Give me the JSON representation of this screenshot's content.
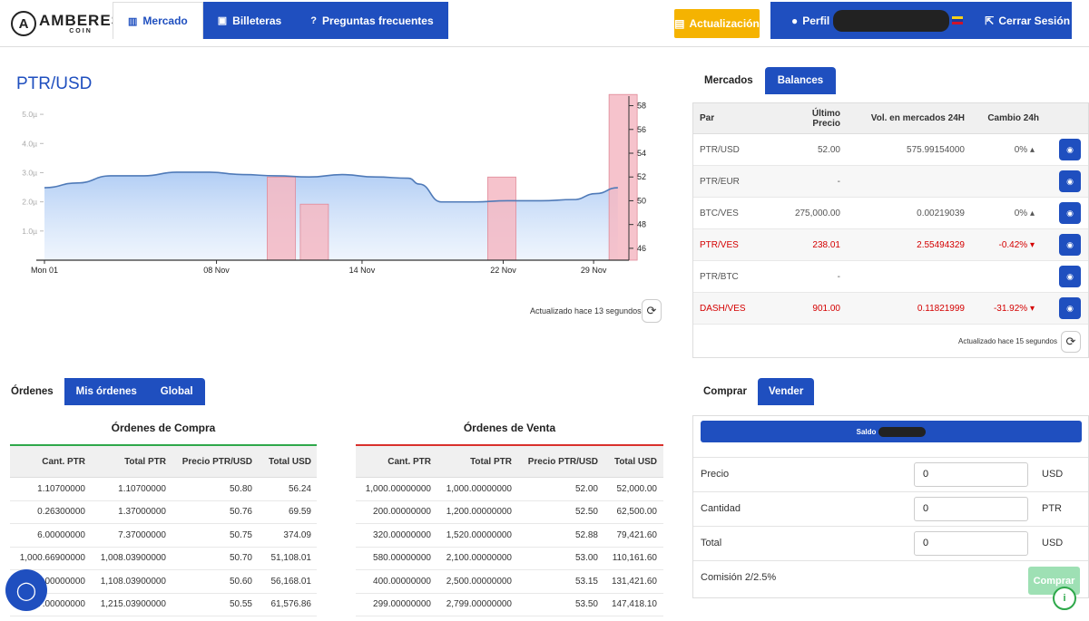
{
  "brand": {
    "name": "AMBERES",
    "sub": "COIN"
  },
  "nav": {
    "tabs": [
      {
        "label": "Mercado",
        "icon": "bar-chart-icon"
      },
      {
        "label": "Billeteras",
        "icon": "wallet-icon"
      },
      {
        "label": "Preguntas frecuentes",
        "icon": "question-icon"
      }
    ],
    "update_label": "Actualización",
    "profile_label": "Perfil",
    "logout_label": "Cerrar Sesión"
  },
  "pair": {
    "title": "PTR/USD",
    "updated": "Actualizado hace 13 segundos"
  },
  "chart_data": {
    "type": "area",
    "x_ticks": [
      "Mon 01",
      "08 Nov",
      "14 Nov",
      "22 Nov",
      "29 Nov"
    ],
    "left_axis": {
      "ticks": [
        "1.0µ",
        "2.0µ",
        "3.0µ",
        "4.0µ",
        "5.0µ"
      ],
      "range": [
        0,
        5.5
      ]
    },
    "right_axis": {
      "ticks": [
        "46",
        "48",
        "50",
        "52",
        "54",
        "56",
        "58"
      ],
      "range": [
        45,
        58.5
      ]
    },
    "price_series": [
      [
        0,
        51.1
      ],
      [
        1.5,
        51.5
      ],
      [
        3,
        52.1
      ],
      [
        4.5,
        52.1
      ],
      [
        6,
        52.4
      ],
      [
        7.5,
        52.4
      ],
      [
        9,
        52.2
      ],
      [
        10.5,
        52.1
      ],
      [
        12,
        52.0
      ],
      [
        13.5,
        52.2
      ],
      [
        15,
        52.0
      ],
      [
        16.5,
        51.9
      ],
      [
        17,
        51.4
      ],
      [
        18,
        49.9
      ],
      [
        19.5,
        49.9
      ],
      [
        21,
        50.0
      ],
      [
        22.5,
        50.0
      ],
      [
        24,
        50.1
      ],
      [
        25,
        50.6
      ],
      [
        26,
        51.1
      ]
    ],
    "volume_bars": [
      {
        "x": 10.1,
        "value": 2.85
      },
      {
        "x": 11.6,
        "value": 1.92
      },
      {
        "x": 20.1,
        "value": 2.85
      },
      {
        "x": 25.6,
        "value": 5.68
      }
    ],
    "x_domain": [
      0,
      26.5
    ]
  },
  "markets": {
    "tabs": [
      "Mercados",
      "Balances"
    ],
    "headers": [
      "Par",
      "Último Precio",
      "Vol. en mercados 24H",
      "Cambio 24h"
    ],
    "rows": [
      {
        "par": "PTR/USD",
        "last": "52.00",
        "vol": "575.99154000",
        "chg": "0%",
        "dir": "up",
        "neg": false
      },
      {
        "par": "PTR/EUR",
        "last": "-",
        "vol": "",
        "chg": "",
        "dir": "",
        "neg": false
      },
      {
        "par": "BTC/VES",
        "last": "275,000.00",
        "vol": "0.00219039",
        "chg": "0%",
        "dir": "up",
        "neg": false
      },
      {
        "par": "PTR/VES",
        "last": "238.01",
        "vol": "2.55494329",
        "chg": "-0.42%",
        "dir": "down",
        "neg": true
      },
      {
        "par": "PTR/BTC",
        "last": "-",
        "vol": "",
        "chg": "",
        "dir": "",
        "neg": false
      },
      {
        "par": "DASH/VES",
        "last": "901.00",
        "vol": "0.11821999",
        "chg": "-31.92%",
        "dir": "down",
        "neg": true
      }
    ],
    "updated": "Actualizado hace 15 segundos"
  },
  "orders": {
    "tabs": [
      "Órdenes",
      "Mis órdenes",
      "Global"
    ],
    "buy_title": "Órdenes de Compra",
    "sell_title": "Órdenes de Venta",
    "headers": [
      "Cant. PTR",
      "Total PTR",
      "Precio PTR/USD",
      "Total USD"
    ],
    "buy_rows": [
      [
        "1.10700000",
        "1.10700000",
        "50.80",
        "56.24"
      ],
      [
        "0.26300000",
        "1.37000000",
        "50.76",
        "69.59"
      ],
      [
        "6.00000000",
        "7.37000000",
        "50.75",
        "374.09"
      ],
      [
        "1,000.66900000",
        "1,008.03900000",
        "50.70",
        "51,108.01"
      ],
      [
        "100.00000000",
        "1,108.03900000",
        "50.60",
        "56,168.01"
      ],
      [
        "107.00000000",
        "1,215.03900000",
        "50.55",
        "61,576.86"
      ]
    ],
    "sell_rows": [
      [
        "1,000.00000000",
        "1,000.00000000",
        "52.00",
        "52,000.00"
      ],
      [
        "200.00000000",
        "1,200.00000000",
        "52.50",
        "62,500.00"
      ],
      [
        "320.00000000",
        "1,520.00000000",
        "52.88",
        "79,421.60"
      ],
      [
        "580.00000000",
        "2,100.00000000",
        "53.00",
        "110,161.60"
      ],
      [
        "400.00000000",
        "2,500.00000000",
        "53.15",
        "131,421.60"
      ],
      [
        "299.00000000",
        "2,799.00000000",
        "53.50",
        "147,418.10"
      ]
    ]
  },
  "trade": {
    "tabs": [
      "Comprar",
      "Vender"
    ],
    "saldo_label": "Saldo",
    "fields": [
      {
        "label": "Precio",
        "value": "0",
        "unit": "USD"
      },
      {
        "label": "Cantidad",
        "value": "0",
        "unit": "PTR"
      },
      {
        "label": "Total",
        "value": "0",
        "unit": "USD"
      }
    ],
    "commission": "Comisión 2/2.5%",
    "buy_label": "Comprar"
  },
  "colors": {
    "primary": "#1f4fbf",
    "warning": "#f5b301",
    "success": "#9ee0b4",
    "negative": "#d40000",
    "buy_border": "#2ea84a",
    "sell_border": "#d9302c"
  }
}
